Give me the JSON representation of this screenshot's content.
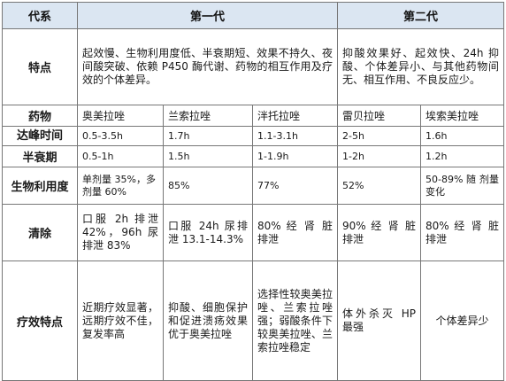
{
  "headers": {
    "col_label": "代系",
    "gen1": "第一代",
    "gen2": "第二代"
  },
  "features": {
    "label": "特点",
    "gen1_text": "起效慢、生物利用度低、半衰期短、效果不持久、夜间酸突破、依赖 P450 酶代谢、药物的相互作用及疗效的个体差异。",
    "gen2_text": "抑酸效果好、起效快、24h 抑酸、个体差异小、与其他药物间无、相互作用、不良反应少。"
  },
  "rows": [
    {
      "label": "药物",
      "cells": [
        "奥美拉唑",
        "兰索拉唑",
        "泮托拉唑",
        "雷贝拉唑",
        "埃索美拉唑"
      ]
    },
    {
      "label": "达峰时间",
      "cells": [
        "0.5-3.5h",
        "1.7h",
        "1.1-3.1h",
        "2-5h",
        "1.6h"
      ]
    },
    {
      "label": "半衰期",
      "cells": [
        "0.5-1h",
        "1.5h",
        "1-1.9h",
        "1-2h",
        "1.2h"
      ]
    },
    {
      "label": "生物利用度",
      "cells": [
        "单剂量 35%，多剂量 60%",
        "85%",
        "77%",
        "52%",
        "50-89% 随 剂量变化"
      ]
    },
    {
      "label": "清除",
      "cells": [
        "口服 2h 排泄 42%，96h 尿排泄 83%",
        "口服 24h 尿排泄 13.1-14.3%",
        "80% 经 肾 脏排泄",
        "90% 经 肾 脏排泄",
        "80% 经 肾 脏排泄"
      ]
    },
    {
      "label": "疗效特点",
      "cells": [
        "近期疗效显著，远期疗效不佳，复发率高",
        "抑酸、细胞保护和促进溃疡效果优于奥美拉唑",
        "选择性较奥美拉唑、兰索拉唑强；弱酸条件下较奥美拉唑、兰索拉唑稳定",
        "体外杀灭 HP 最强",
        "个体差异少"
      ]
    }
  ]
}
